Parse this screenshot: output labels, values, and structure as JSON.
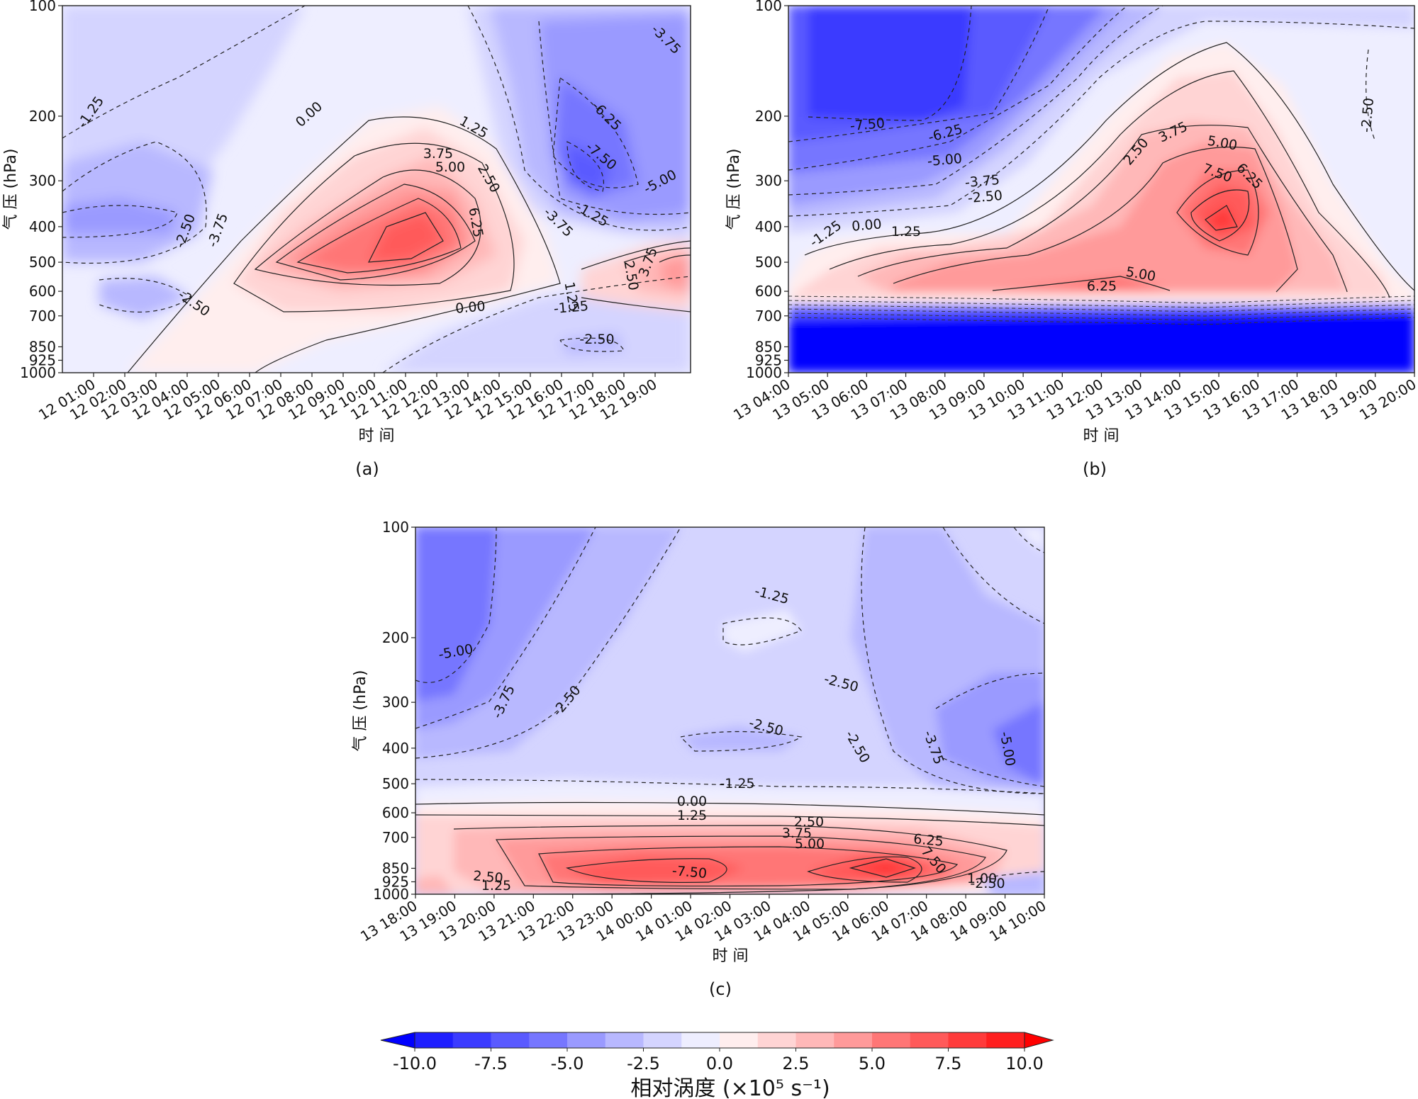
{
  "chart_data": [
    {
      "type": "heatmap",
      "panel_label": "(a)",
      "xlabel": "时 间",
      "ylabel": "气 压 (hPa)",
      "y_ticks": [
        100,
        200,
        300,
        400,
        500,
        600,
        700,
        850,
        925,
        1000
      ],
      "x_ticks": [
        "12 01:00",
        "12 02:00",
        "12 03:00",
        "12 04:00",
        "12 05:00",
        "12 06:00",
        "12 07:00",
        "12 08:00",
        "12 09:00",
        "12 10:00",
        "12 11:00",
        "12 12:00",
        "12 13:00",
        "12 14:00",
        "12 15:00",
        "12 16:00",
        "12 17:00",
        "12 18:00",
        "12 19:00"
      ],
      "contour_labels": [
        "-1.25",
        "0.00",
        "1.25",
        "3.75",
        "5.00",
        "2.50",
        "6.25",
        "-6.25",
        "-7.50",
        "-5.00",
        "-3.75",
        "-2.50",
        "-3.75",
        "-2.50",
        "-1.25",
        "1.25",
        "2.50",
        "3.75",
        "0.00",
        "-1.25",
        "-2.50",
        "-3.75"
      ]
    },
    {
      "type": "heatmap",
      "panel_label": "(b)",
      "xlabel": "时 间",
      "ylabel": "气 压 (hPa)",
      "y_ticks": [
        100,
        200,
        300,
        400,
        500,
        600,
        700,
        850,
        925,
        1000
      ],
      "x_ticks": [
        "13 04:00",
        "13 05:00",
        "13 06:00",
        "13 07:00",
        "13 08:00",
        "13 09:00",
        "13 10:00",
        "13 11:00",
        "13 12:00",
        "13 13:00",
        "13 14:00",
        "13 15:00",
        "13 16:00",
        "13 17:00",
        "13 18:00",
        "13 19:00",
        "13 20:00"
      ],
      "contour_labels": [
        "-7.50",
        "-6.25",
        "-5.00",
        "-3.75",
        "-2.50",
        "-1.25",
        "0.00",
        "1.25",
        "2.50",
        "3.75",
        "5.00",
        "7.50",
        "6.25",
        "5.00",
        "6.25",
        "-2.50"
      ]
    },
    {
      "type": "heatmap",
      "panel_label": "(c)",
      "xlabel": "时 间",
      "ylabel": "气 压 (hPa)",
      "y_ticks": [
        100,
        200,
        300,
        400,
        500,
        600,
        700,
        850,
        925,
        1000
      ],
      "x_ticks": [
        "13 18:00",
        "13 19:00",
        "13 20:00",
        "13 21:00",
        "13 22:00",
        "13 23:00",
        "14 00:00",
        "14 01:00",
        "14 02:00",
        "14 03:00",
        "14 04:00",
        "14 05:00",
        "14 06:00",
        "14 07:00",
        "14 08:00",
        "14 09:00",
        "14 10:00"
      ],
      "contour_labels": [
        "-1.25",
        "-2.50",
        "-5.00",
        "-3.75",
        "-2.50",
        "-2.50",
        "-2.50",
        "-3.75",
        "-5.00",
        "-1.25",
        "0.00",
        "1.25",
        "2.50",
        "3.75",
        "5.00",
        "-7.50",
        "2.50",
        "1.25",
        "6.25",
        "7.50",
        "1.00",
        "-2.50"
      ]
    }
  ],
  "colorbar": {
    "ticks": [
      "-10.0",
      "-7.5",
      "-5.0",
      "-2.5",
      "0.0",
      "2.5",
      "5.0",
      "7.5",
      "10.0"
    ],
    "title": "相对涡度 (×10⁵ s⁻¹)",
    "range": [
      -10,
      10
    ],
    "colors": [
      "#1f1fff",
      "#3b3bff",
      "#5a5aff",
      "#7676ff",
      "#9a9aff",
      "#b8b8ff",
      "#d4d4ff",
      "#eeeeff",
      "#ffeeee",
      "#ffd4d4",
      "#ffb8b8",
      "#ff9a9a",
      "#ff7676",
      "#ff5a5a",
      "#ff3b3b",
      "#ff1f1f"
    ]
  }
}
